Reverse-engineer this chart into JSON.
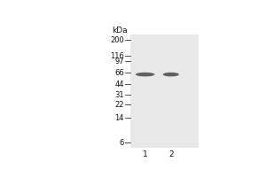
{
  "outer_background": "#ffffff",
  "gel_color": "#e8e8e8",
  "ladder_marks": [
    200,
    116,
    97,
    66,
    44,
    31,
    22,
    14,
    6
  ],
  "kda_label": "kDa",
  "lane_labels": [
    "1",
    "2"
  ],
  "band_mw": 62,
  "band_color": "#606060",
  "tick_color": "#333333",
  "label_color": "#111111",
  "label_fontsize": 6.0,
  "kda_fontsize": 6.5,
  "lane_label_fontsize": 6.5,
  "mw_log_min": 0.7,
  "mw_log_max": 2.38
}
